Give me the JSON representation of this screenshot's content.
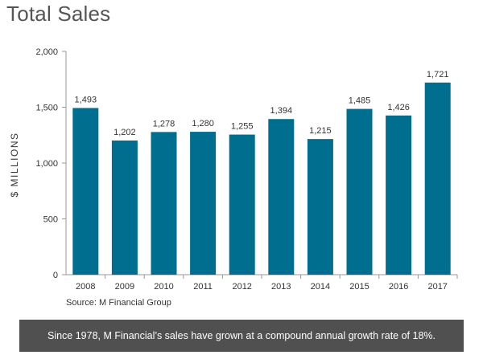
{
  "title": "Total Sales",
  "source": "Source: M Financial Group",
  "footnote": "Since 1978, M Financial’s sales have grown at a compound annual growth rate of 18%.",
  "colors": {
    "bar": "#006e8f",
    "axis": "#999999",
    "text": "#333333",
    "footer_bg": "#505050"
  },
  "chart_data": {
    "type": "bar",
    "title": "Total Sales",
    "xlabel": "",
    "ylabel": "$ MILLIONS",
    "ylim": [
      0,
      2000
    ],
    "yticks": [
      0,
      500,
      1000,
      1500,
      2000
    ],
    "ytick_labels": [
      "0",
      "500",
      "1,000",
      "1,500",
      "2,000"
    ],
    "categories": [
      "2008",
      "2009",
      "2010",
      "2011",
      "2012",
      "2013",
      "2014",
      "2015",
      "2016",
      "2017"
    ],
    "values": [
      1493,
      1202,
      1278,
      1280,
      1255,
      1394,
      1215,
      1485,
      1426,
      1721
    ],
    "value_labels": [
      "1,493",
      "1,202",
      "1,278",
      "1,280",
      "1,255",
      "1,394",
      "1,215",
      "1,485",
      "1,426",
      "1,721"
    ],
    "grid": false,
    "legend": "none"
  }
}
